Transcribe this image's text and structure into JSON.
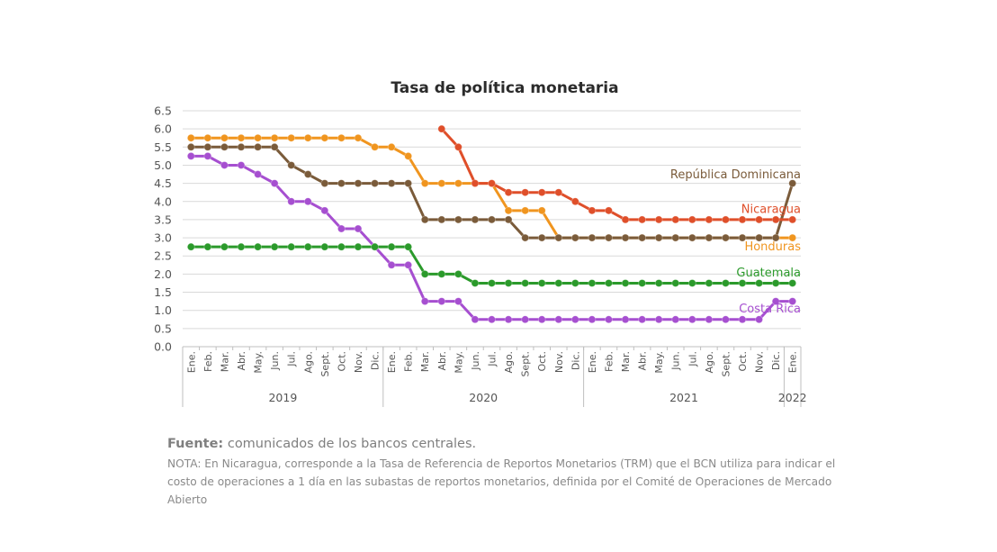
{
  "footer": {
    "source_label": "Fuente:",
    "source_text": "comunicados de los bancos centrales.",
    "note": "NOTA: En Nicaragua, corresponde a la Tasa de Referencia de Reportos Monetarios (TRM) que el BCN utiliza para indicar el costo de operaciones a 1 día en las subastas de reportos monetarios, definida por el Comité de Operaciones de Mercado Abierto"
  },
  "chart_data": {
    "type": "line",
    "title": "Tasa de política monetaria",
    "xlabel": "",
    "ylabel": "",
    "ylim": [
      0,
      6.5
    ],
    "yticks": [
      "0.0",
      "0.5",
      "1.0",
      "1.5",
      "2.0",
      "2.5",
      "3.0",
      "3.5",
      "4.0",
      "4.5",
      "5.0",
      "5.5",
      "6.0",
      "6.5"
    ],
    "grid": true,
    "legend": "inline labels at line ends",
    "categories": [
      "Ene.",
      "Feb.",
      "Mar.",
      "Abr.",
      "May.",
      "Jun.",
      "Jul.",
      "Ago.",
      "Sept.",
      "Oct.",
      "Nov.",
      "Dic.",
      "Ene.",
      "Feb.",
      "Mar.",
      "Abr.",
      "May.",
      "Jun.",
      "Jul.",
      "Ago.",
      "Sept.",
      "Oct.",
      "Nov.",
      "Dic.",
      "Ene.",
      "Feb.",
      "Mar.",
      "Abr.",
      "May.",
      "Jun.",
      "Jul.",
      "Ago.",
      "Sept.",
      "Oct.",
      "Nov.",
      "Dic.",
      "Ene."
    ],
    "year_groups": [
      {
        "label": "2019",
        "start": 0,
        "end": 11
      },
      {
        "label": "2020",
        "start": 12,
        "end": 23
      },
      {
        "label": "2021",
        "start": 24,
        "end": 35
      },
      {
        "label": "2022",
        "start": 36,
        "end": 36
      }
    ],
    "series": [
      {
        "name": "Honduras",
        "color": "#f0951f",
        "values": [
          5.75,
          5.75,
          5.75,
          5.75,
          5.75,
          5.75,
          5.75,
          5.75,
          5.75,
          5.75,
          5.75,
          5.5,
          5.5,
          5.25,
          4.5,
          4.5,
          4.5,
          4.5,
          4.5,
          3.75,
          3.75,
          3.75,
          3.0,
          3.0,
          3.0,
          3.0,
          3.0,
          3.0,
          3.0,
          3.0,
          3.0,
          3.0,
          3.0,
          3.0,
          3.0,
          3.0,
          3.0
        ]
      },
      {
        "name": "República Dominicana",
        "color": "#7a5b3a",
        "values": [
          5.5,
          5.5,
          5.5,
          5.5,
          5.5,
          5.5,
          5.0,
          4.75,
          4.5,
          4.5,
          4.5,
          4.5,
          4.5,
          4.5,
          3.5,
          3.5,
          3.5,
          3.5,
          3.5,
          3.5,
          3.0,
          3.0,
          3.0,
          3.0,
          3.0,
          3.0,
          3.0,
          3.0,
          3.0,
          3.0,
          3.0,
          3.0,
          3.0,
          3.0,
          3.0,
          3.0,
          4.5
        ]
      },
      {
        "name": "Costa Rica",
        "color": "#a64fd0",
        "values": [
          5.25,
          5.25,
          5.0,
          5.0,
          4.75,
          4.5,
          4.0,
          4.0,
          3.75,
          3.25,
          3.25,
          2.75,
          2.25,
          2.25,
          1.25,
          1.25,
          1.25,
          0.75,
          0.75,
          0.75,
          0.75,
          0.75,
          0.75,
          0.75,
          0.75,
          0.75,
          0.75,
          0.75,
          0.75,
          0.75,
          0.75,
          0.75,
          0.75,
          0.75,
          0.75,
          1.25,
          1.25
        ]
      },
      {
        "name": "Guatemala",
        "color": "#2b9a2b",
        "values": [
          2.75,
          2.75,
          2.75,
          2.75,
          2.75,
          2.75,
          2.75,
          2.75,
          2.75,
          2.75,
          2.75,
          2.75,
          2.75,
          2.75,
          2.0,
          2.0,
          2.0,
          1.75,
          1.75,
          1.75,
          1.75,
          1.75,
          1.75,
          1.75,
          1.75,
          1.75,
          1.75,
          1.75,
          1.75,
          1.75,
          1.75,
          1.75,
          1.75,
          1.75,
          1.75,
          1.75,
          1.75
        ]
      },
      {
        "name": "Nicaragua",
        "color": "#df4f2a",
        "values": [
          null,
          null,
          null,
          null,
          null,
          null,
          null,
          null,
          null,
          null,
          null,
          null,
          null,
          null,
          null,
          6.0,
          5.5,
          4.5,
          4.5,
          4.25,
          4.25,
          4.25,
          4.25,
          4.0,
          3.75,
          3.75,
          3.5,
          3.5,
          3.5,
          3.5,
          3.5,
          3.5,
          3.5,
          3.5,
          3.5,
          3.5,
          3.5
        ]
      }
    ]
  }
}
